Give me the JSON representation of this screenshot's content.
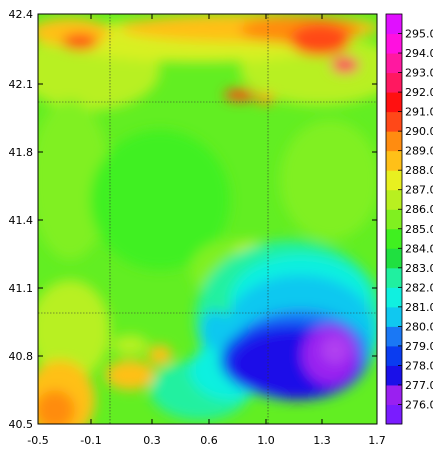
{
  "chart_data": {
    "type": "heatmap",
    "title": "",
    "xlabel": "",
    "ylabel": "",
    "xlim": [
      -0.5,
      1.7
    ],
    "ylim": [
      40.5,
      42.4
    ],
    "x_ticks": [
      -0.5,
      -0.1,
      0.3,
      0.6,
      1.0,
      1.3,
      1.7
    ],
    "x_tick_labels": [
      "-0.5",
      "-0.1",
      "0.3",
      "0.6",
      "1.0",
      "1.3",
      "1.7"
    ],
    "y_ticks": [
      40.5,
      40.8,
      41.1,
      41.4,
      41.8,
      42.1,
      42.4
    ],
    "y_tick_labels": [
      "40.5",
      "40.8",
      "41.1",
      "41.4",
      "41.8",
      "42.1",
      "42.4"
    ],
    "colorbar": {
      "levels": [
        276.0,
        277.0,
        278.0,
        279.0,
        280.0,
        281.0,
        282.0,
        283.0,
        284.0,
        285.0,
        286.0,
        287.0,
        288.0,
        289.0,
        290.0,
        291.0,
        292.0,
        293.0,
        294.0,
        295.0
      ],
      "labels": [
        "276.0",
        "277.0",
        "278.0",
        "279.0",
        "280.0",
        "281.0",
        "282.0",
        "283.0",
        "284.0",
        "285.0",
        "286.0",
        "287.0",
        "288.0",
        "289.0",
        "290.0",
        "291.0",
        "292.0",
        "293.0",
        "294.0",
        "295.0"
      ],
      "colors": [
        "#7a1cff",
        "#9a20f0",
        "#1a10e8",
        "#0a3cf0",
        "#1a78f5",
        "#10c8f0",
        "#10f0e0",
        "#20f0a0",
        "#20e040",
        "#40f020",
        "#80f020",
        "#b8f020",
        "#e8f020",
        "#ffc018",
        "#ff8c10",
        "#ff4818",
        "#ff1010",
        "#ff1860",
        "#ff18a0",
        "#ff10e0",
        "#e010ff"
      ]
    },
    "grid": true
  }
}
